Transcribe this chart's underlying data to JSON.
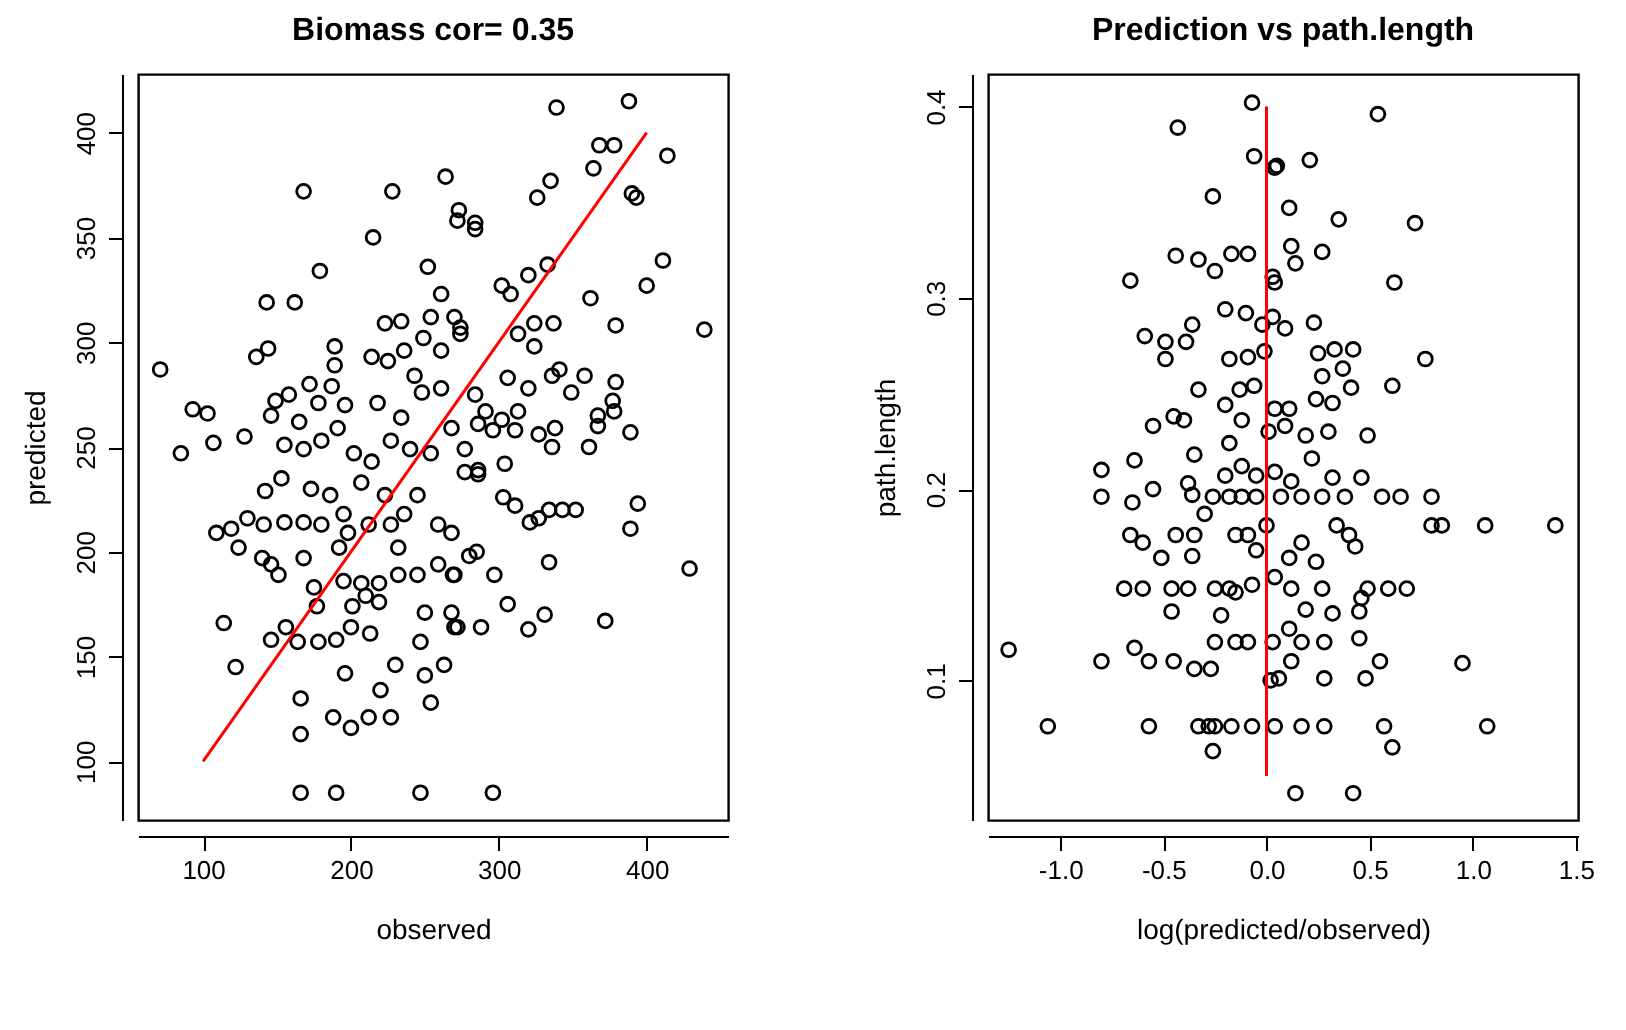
{
  "chart_data": [
    {
      "type": "scatter",
      "title": "Biomass cor= 0.35",
      "xlabel": "observed",
      "ylabel": "predicted",
      "xlim": [
        56,
        455
      ],
      "ylim": [
        72,
        428
      ],
      "xticks": [
        100,
        200,
        300,
        400
      ],
      "yticks": [
        100,
        150,
        200,
        250,
        300,
        350,
        400
      ],
      "grid": false,
      "marker": "circle",
      "series": [
        {
          "color": "#000000",
          "x": [
            71,
            168,
            228,
            264,
            215,
            179,
            143,
            162,
            136,
            144,
            189,
            93,
            103,
            85,
            107,
            128,
            109,
            114,
            122,
            166,
            166,
            166,
            190,
            247,
            188,
            212,
            227,
            200,
            196,
            220,
            230,
            254,
            250,
            263,
            146,
            156,
            164,
            178,
            190,
            200,
            213,
            201,
            247,
            250,
            268,
            272,
            175,
            177,
            195,
            207,
            219,
            210,
            219,
            232,
            245,
            259,
            270,
            151,
            146,
            140,
            124,
            119,
            130,
            141,
            155,
            168,
            180,
            198,
            212,
            227,
            236,
            259,
            268,
            192,
            232,
            168,
            142,
            153,
            173,
            186,
            207,
            223,
            245,
            195,
            155,
            168,
            180,
            191,
            202,
            214,
            227,
            240,
            254,
            268,
            277,
            286,
            146,
            165,
            178,
            196,
            218,
            234,
            248,
            261,
            284,
            149,
            158,
            172,
            187,
            189,
            214,
            225,
            236,
            249,
            261,
            223,
            234,
            254,
            270,
            274,
            261,
            252,
            272,
            284,
            243,
            339,
            388,
            414,
            368,
            378,
            364,
            326,
            335,
            390,
            393,
            273,
            284,
            411,
            400,
            362,
            333,
            320,
            302,
            308,
            439,
            379,
            337,
            324,
            313,
            274,
            324,
            358,
            341,
            336,
            379,
            349,
            377,
            367,
            378,
            367,
            389,
            361,
            338,
            336,
            327,
            320,
            306,
            313,
            311,
            302,
            291,
            286,
            296,
            304,
            286,
            277,
            303,
            311,
            327,
            334,
            343,
            352,
            321,
            394,
            389,
            429,
            372,
            334,
            331,
            320,
            306,
            297,
            285,
            280,
            288,
            269,
            296,
            270
          ],
          "values": [
            287,
            372,
            372,
            379,
            350,
            334,
            319,
            319,
            293,
            297,
            298,
            268,
            266,
            247,
            252,
            255,
            209,
            166,
            145,
            130,
            113,
            85,
            85,
            85,
            121,
            121,
            121,
            116,
            142,
            134,
            146,
            128,
            141,
            146,
            158,
            164,
            157,
            157,
            158,
            164,
            161,
            174,
            157,
            171,
            171,
            164,
            183,
            174,
            186,
            185,
            185,
            179,
            176,
            189,
            189,
            194,
            189,
            189,
            194,
            197,
            202,
            211,
            216,
            213,
            214,
            214,
            213,
            209,
            213,
            213,
            218,
            213,
            209,
            202,
            202,
            197,
            229,
            235,
            230,
            227,
            233,
            227,
            227,
            218,
            251,
            249,
            253,
            259,
            247,
            243,
            253,
            249,
            247,
            259,
            249,
            237,
            265,
            262,
            271,
            270,
            271,
            264,
            276,
            278,
            275,
            272,
            275,
            280,
            279,
            289,
            293,
            291,
            296,
            302,
            296,
            309,
            310,
            312,
            312,
            307,
            323,
            336,
            358,
            354,
            284,
            412,
            415,
            389,
            394,
            394,
            383,
            369,
            377,
            371,
            369,
            363,
            357,
            339,
            327,
            321,
            337,
            332,
            327,
            323,
            306,
            308,
            309,
            309,
            304,
            304,
            298,
            284,
            287,
            284,
            281,
            276,
            272,
            265,
            267,
            260,
            257,
            250,
            259,
            250,
            256,
            278,
            283,
            267,
            258,
            263,
            267,
            261,
            258,
            242,
            239,
            238,
            226,
            222,
            216,
            220,
            220,
            220,
            214,
            223,
            211,
            192,
            167,
            195,
            170,
            163,
            175,
            189,
            200,
            198,
            164,
            189,
            85,
            164
          ]
        },
        {
          "type": "line",
          "marker": "none",
          "color": "#ff0000",
          "x": [
            100,
            400
          ],
          "values": [
            100,
            400
          ]
        }
      ]
    },
    {
      "type": "scatter",
      "title": "Prediction vs path.length",
      "xlabel": "log(predicted/observed)",
      "ylabel": "path.length",
      "xlim": [
        -1.35,
        1.51
      ],
      "ylim": [
        0.027,
        0.417
      ],
      "xticks": [
        {
          "value": -1,
          "label": "-1.0"
        },
        {
          "value": -0.5,
          "label": "-0.5"
        },
        {
          "value": 0,
          "label": "0.0"
        },
        {
          "value": 0.5,
          "label": "0.5"
        },
        {
          "value": 1,
          "label": "1.0"
        },
        {
          "value": 1.5,
          "label": "1.5"
        }
      ],
      "yticks": [
        0.1,
        0.2,
        0.3,
        0.4
      ],
      "grid": false,
      "marker": "circle",
      "series": [
        {
          "color": "#000000",
          "x": [
            -1.25,
            -1.06,
            -0.8,
            -0.8,
            -0.8,
            -0.66,
            -0.64,
            -0.57,
            -0.57,
            -0.69,
            -0.6,
            -0.64,
            -0.65,
            -0.66,
            -0.6,
            -0.55,
            -0.59,
            -0.55,
            -0.45,
            -0.49,
            -0.49,
            -0.43,
            -0.44,
            -0.44,
            -0.45,
            -0.51,
            -0.46,
            -0.46,
            -0.4,
            -0.39,
            -0.36,
            -0.33,
            -0.35,
            -0.38,
            -0.36,
            -0.35,
            -0.36,
            -0.38,
            -0.35,
            -0.33,
            -0.26,
            -0.25,
            -0.27,
            -0.28,
            -0.26,
            -0.33,
            -0.25,
            -0.17,
            -0.07,
            -0.25,
            -0.15,
            -0.09,
            -0.22,
            -0.15,
            -0.07,
            -0.18,
            -0.25,
            -0.26,
            -0.18,
            -0.12,
            -0.05,
            -0.3,
            -0.15,
            -0.09,
            -0.05,
            -0.2,
            -0.12,
            -0.05,
            -0.18,
            -0.12,
            -0.2,
            -0.13,
            -0.06,
            -0.18,
            -0.09,
            -0.1,
            -0.17,
            -0.09,
            -0.2,
            -0.07,
            -0.06,
            -0.02,
            -0.01,
            0.01,
            0.0,
            0.02,
            0.04,
            0.03,
            0.54,
            0.21,
            0.05,
            0.11,
            0.35,
            0.72,
            0.12,
            0.27,
            0.14,
            0.04,
            0.62,
            0.03,
            0.09,
            0.23,
            0.25,
            0.33,
            0.42,
            0.37,
            0.27,
            0.41,
            0.24,
            0.32,
            0.61,
            0.77,
            0.04,
            0.11,
            0.09,
            0.19,
            0.3,
            0.49,
            0.22,
            0.04,
            0.12,
            0.32,
            0.46,
            0.07,
            0.17,
            0.27,
            0.38,
            0.56,
            0.65,
            0.8,
            0.8,
            0.85,
            1.06,
            1.4,
            0.34,
            0.4,
            0.43,
            0.17,
            0.11,
            0.24,
            0.04,
            0.12,
            0.27,
            0.49,
            0.59,
            0.68,
            0.46,
            0.19,
            0.32,
            0.45,
            0.11,
            0.03,
            0.17,
            0.28,
            0.45,
            0.12,
            0.55,
            0.95,
            0.06,
            0.28,
            0.48,
            0.04,
            0.17,
            0.28,
            0.57,
            1.07,
            0.61,
            0.14,
            0.42
          ],
          "values": [
            0.116,
            0.076,
            0.11,
            0.21,
            0.196,
            0.309,
            0.117,
            0.11,
            0.076,
            0.148,
            0.148,
            0.215,
            0.193,
            0.176,
            0.172,
            0.2,
            0.28,
            0.233,
            0.238,
            0.268,
            0.277,
            0.389,
            0.322,
            0.176,
            0.11,
            0.164,
            0.148,
            0.136,
            0.236,
            0.277,
            0.286,
            0.252,
            0.218,
            0.203,
            0.197,
            0.176,
            0.165,
            0.148,
            0.106,
            0.32,
            0.353,
            0.314,
            0.106,
            0.076,
            0.063,
            0.076,
            0.076,
            0.076,
            0.076,
            0.12,
            0.12,
            0.12,
            0.134,
            0.146,
            0.15,
            0.148,
            0.148,
            0.196,
            0.196,
            0.196,
            0.196,
            0.187,
            0.176,
            0.176,
            0.168,
            0.207,
            0.212,
            0.207,
            0.224,
            0.236,
            0.244,
            0.252,
            0.254,
            0.268,
            0.269,
            0.292,
            0.323,
            0.323,
            0.294,
            0.402,
            0.374,
            0.286,
            0.272,
            0.23,
            0.181,
            0.1,
            0.368,
            0.311,
            0.396,
            0.372,
            0.369,
            0.347,
            0.341,
            0.339,
            0.327,
            0.324,
            0.318,
            0.308,
            0.308,
            0.29,
            0.284,
            0.287,
            0.271,
            0.273,
            0.273,
            0.263,
            0.259,
            0.253,
            0.247,
            0.245,
            0.254,
            0.268,
            0.242,
            0.242,
            0.233,
            0.228,
            0.23,
            0.228,
            0.216,
            0.209,
            0.204,
            0.206,
            0.206,
            0.196,
            0.196,
            0.196,
            0.196,
            0.196,
            0.196,
            0.196,
            0.181,
            0.181,
            0.181,
            0.181,
            0.181,
            0.176,
            0.17,
            0.172,
            0.164,
            0.162,
            0.154,
            0.148,
            0.148,
            0.148,
            0.148,
            0.148,
            0.143,
            0.137,
            0.135,
            0.136,
            0.127,
            0.12,
            0.12,
            0.12,
            0.122,
            0.11,
            0.11,
            0.109,
            0.101,
            0.101,
            0.101,
            0.076,
            0.076,
            0.076,
            0.076,
            0.076,
            0.065,
            0.041,
            0.041
          ]
        },
        {
          "type": "line",
          "marker": "none",
          "color": "#ff0000",
          "x": [
            0,
            0
          ],
          "values": [
            0.05,
            0.4
          ]
        }
      ]
    }
  ]
}
